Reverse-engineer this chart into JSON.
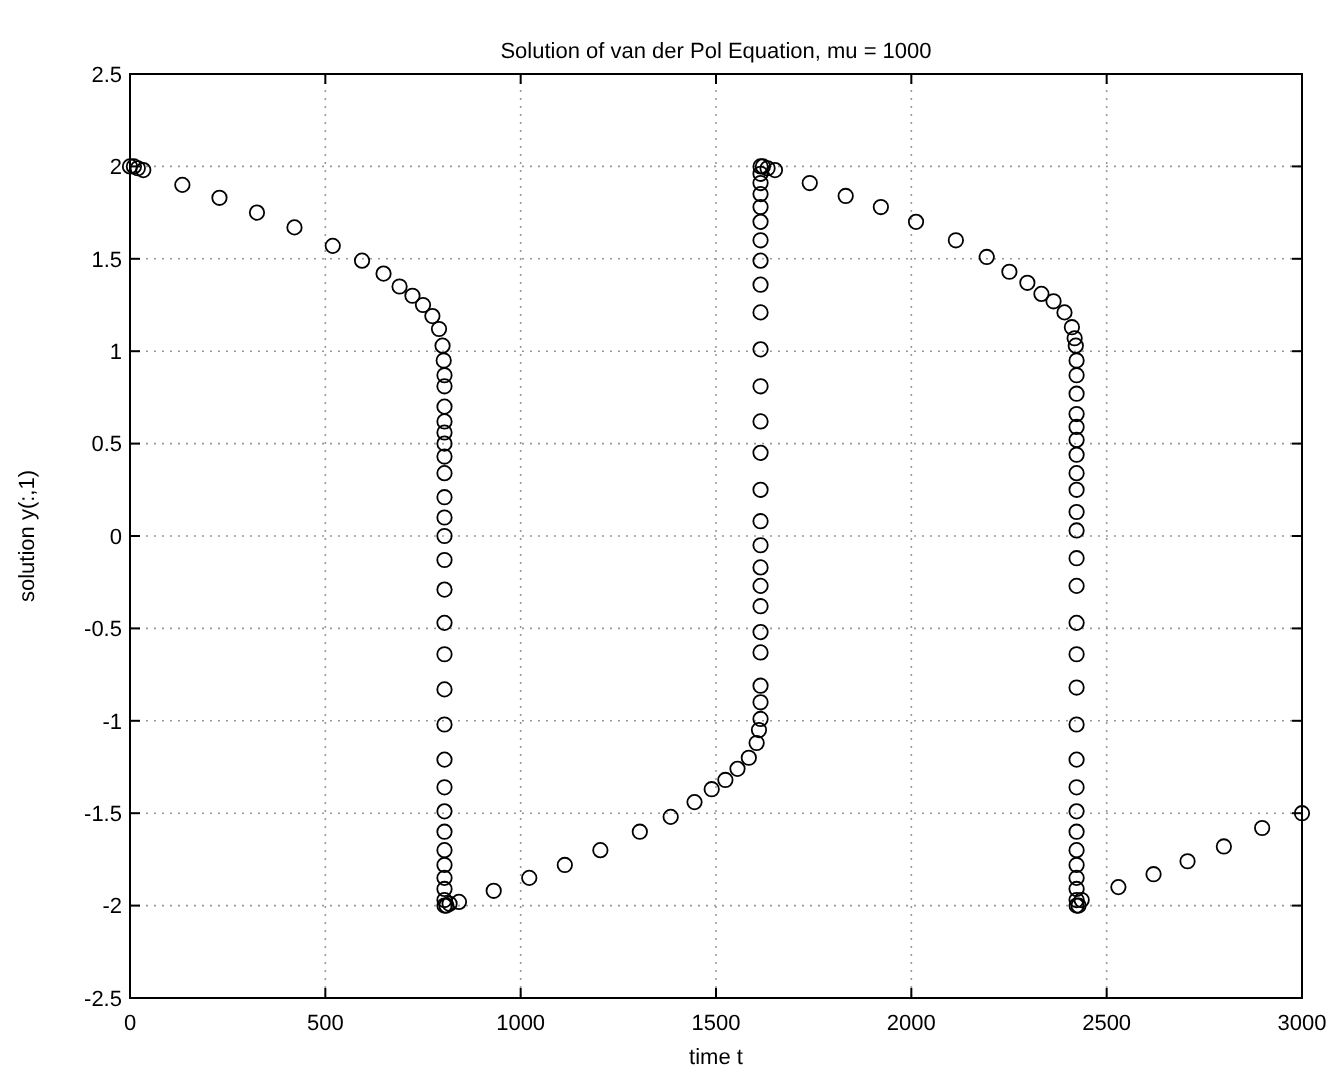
{
  "chart_data": {
    "type": "scatter",
    "title": "Solution of van der Pol Equation, mu = 1000",
    "xlabel": "time t",
    "ylabel": "solution y(:,1)",
    "xlim": [
      0,
      3000
    ],
    "xticks": [
      0,
      500,
      1000,
      1500,
      2000,
      2500,
      3000
    ],
    "ylim": [
      -2.5,
      2.5
    ],
    "yticks": [
      -2.5,
      -2,
      -1.5,
      -1,
      -0.5,
      0,
      0.5,
      1,
      1.5,
      2,
      2.5
    ],
    "grid": true,
    "marker": "circle",
    "series": [
      {
        "color": "#000000",
        "x": [
          0,
          10,
          20,
          34,
          134,
          229,
          325,
          421,
          519,
          594,
          649,
          690,
          723,
          750,
          774,
          791,
          800,
          803,
          805,
          805,
          805,
          805,
          805,
          805,
          805,
          805,
          805,
          805,
          805,
          805,
          805,
          805,
          805,
          805,
          805,
          805,
          805,
          805,
          805,
          805,
          805,
          805,
          805,
          805,
          805,
          810,
          818,
          842,
          931,
          1022,
          1113,
          1204,
          1305,
          1384,
          1445,
          1489,
          1524,
          1555,
          1584,
          1604,
          1610,
          1614,
          1614,
          1614,
          1614,
          1614,
          1614,
          1614,
          1614,
          1614,
          1614,
          1614,
          1614,
          1614,
          1614,
          1614,
          1614,
          1614,
          1614,
          1614,
          1614,
          1614,
          1614,
          1614,
          1614,
          1614,
          1620,
          1632,
          1651,
          1740,
          1832,
          1922,
          2012,
          2114,
          2193,
          2251,
          2297,
          2333,
          2364,
          2392,
          2411,
          2418,
          2421,
          2423,
          2423,
          2423,
          2423,
          2423,
          2423,
          2423,
          2423,
          2423,
          2423,
          2423,
          2423,
          2423,
          2423,
          2423,
          2423,
          2423,
          2423,
          2423,
          2423,
          2423,
          2423,
          2423,
          2423,
          2423,
          2423,
          2423,
          2428,
          2436,
          2530,
          2620,
          2707,
          2800,
          2898,
          3000
        ],
        "values": [
          2.0,
          2.0,
          1.99,
          1.98,
          1.9,
          1.83,
          1.75,
          1.67,
          1.57,
          1.49,
          1.42,
          1.35,
          1.3,
          1.25,
          1.19,
          1.12,
          1.03,
          0.95,
          0.87,
          0.81,
          0.7,
          0.62,
          0.56,
          0.5,
          0.43,
          0.34,
          0.21,
          0.1,
          0.0,
          -0.13,
          -0.29,
          -0.47,
          -0.64,
          -0.83,
          -1.02,
          -1.21,
          -1.36,
          -1.49,
          -1.6,
          -1.7,
          -1.78,
          -1.85,
          -1.91,
          -1.97,
          -2.0,
          -2.0,
          -1.99,
          -1.98,
          -1.92,
          -1.85,
          -1.78,
          -1.7,
          -1.6,
          -1.52,
          -1.44,
          -1.37,
          -1.32,
          -1.26,
          -1.2,
          -1.12,
          -1.05,
          -0.99,
          -0.9,
          -0.81,
          -0.63,
          -0.52,
          -0.38,
          -0.27,
          -0.17,
          -0.05,
          0.08,
          0.25,
          0.45,
          0.62,
          0.81,
          1.01,
          1.21,
          1.36,
          1.49,
          1.6,
          1.7,
          1.78,
          1.85,
          1.91,
          1.96,
          2.0,
          2.0,
          1.99,
          1.98,
          1.91,
          1.84,
          1.78,
          1.7,
          1.6,
          1.51,
          1.43,
          1.37,
          1.31,
          1.27,
          1.21,
          1.13,
          1.07,
          1.03,
          0.95,
          0.87,
          0.77,
          0.66,
          0.59,
          0.52,
          0.44,
          0.34,
          0.25,
          0.13,
          0.03,
          -0.12,
          -0.27,
          -0.47,
          -0.64,
          -0.82,
          -1.02,
          -1.21,
          -1.36,
          -1.49,
          -1.6,
          -1.7,
          -1.78,
          -1.85,
          -1.91,
          -1.97,
          -2.0,
          -2.0,
          -1.97,
          -1.9,
          -1.83,
          -1.76,
          -1.68,
          -1.58,
          -1.5
        ]
      }
    ]
  }
}
